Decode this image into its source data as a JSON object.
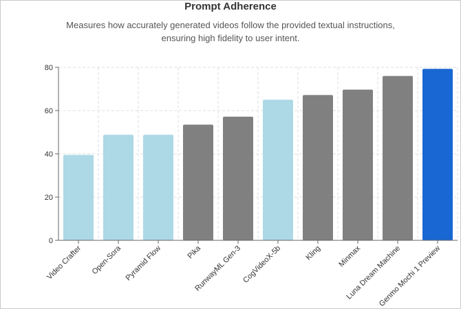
{
  "chart_data": {
    "type": "bar",
    "title": "Prompt Adherence",
    "subtitle_lines": [
      "Measures how accurately generated videos follow the provided textual instructions,",
      "ensuring high fidelity to user intent."
    ],
    "xlabel": "",
    "ylabel": "",
    "ylim": [
      0,
      80
    ],
    "yticks": [
      "0",
      "20",
      "40",
      "60",
      "80"
    ],
    "grid": true,
    "categories": [
      "Video Crafter",
      "Open-Sora",
      "Pyramid Flow",
      "Pika",
      "RunwayML Gen-3",
      "CogVideoX-5b",
      "Kling",
      "Minmax",
      "Luna Dream Machine",
      "Genmo Mochi 1 Preview"
    ],
    "values": [
      39.5,
      48.8,
      48.8,
      53.5,
      57.2,
      65.0,
      67.2,
      69.7,
      76.0,
      79.3
    ],
    "groups": [
      "open",
      "open",
      "open",
      "closed",
      "closed",
      "open",
      "closed",
      "closed",
      "closed",
      "highlight"
    ],
    "colors": {
      "open": "#add8e6",
      "closed": "#808080",
      "highlight": "#1967d2",
      "axis": "#666666",
      "grid": "#dddddd",
      "tick_text": "#333333"
    }
  }
}
